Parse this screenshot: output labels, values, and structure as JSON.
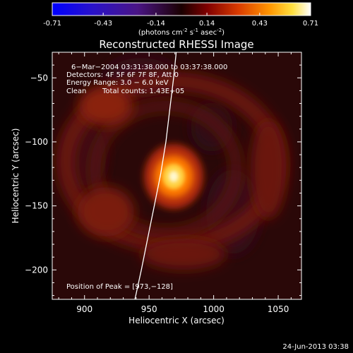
{
  "colors": {
    "background": "#000000",
    "foreground": "#ffffff",
    "colormap": [
      "#0000ff",
      "#3b10b8",
      "#551a7a",
      "#1c0000",
      "#800000",
      "#d93b00",
      "#ff8c00",
      "#ffd700",
      "#ffffff"
    ]
  },
  "colorbar": {
    "tick_labels": [
      "-0.71",
      "-0.43",
      "-0.14",
      "0.14",
      "0.43",
      "0.71"
    ],
    "tick_values": [
      -0.71,
      -0.43,
      -0.14,
      0.14,
      0.43,
      0.71
    ],
    "range": [
      -0.71,
      0.71
    ],
    "units": {
      "prefix": "(photons cm",
      "exp1": "-2",
      "mid1": " s",
      "exp2": "-1",
      "mid2": " asec",
      "exp3": "-2",
      "suffix": ")"
    }
  },
  "chart_data": {
    "type": "heatmap",
    "title": "Reconstructed RHESSI Image",
    "xlabel": "Heliocentric X (arcsec)",
    "ylabel": "Heliocentric Y (arcsec)",
    "xlim": [
      875,
      1068
    ],
    "ylim": [
      -223,
      -30
    ],
    "x_ticks": [
      900,
      950,
      1000,
      1050
    ],
    "y_ticks": [
      -200,
      -150,
      -100,
      -50
    ],
    "x_tick_labels": [
      "900",
      "950",
      "1000",
      "1050"
    ],
    "y_tick_labels": [
      "−200",
      "−150",
      "−100",
      "−50"
    ],
    "annotations": [
      "6−Mar−2004 03:31:38.000 to 03:37:38.000",
      "Detectors: 4F 5F 6F 7F 8F, Att 0",
      "Energy Range: 3.0 − 6.0 keV",
      "Clean",
      "Total counts: 1.43E+05",
      "Position of Peak = [973,−128]"
    ],
    "peak_position": [
      973,
      -128
    ],
    "peak_value": 0.71,
    "limb_curve": {
      "x": [
        939,
        944,
        949,
        954,
        959,
        963,
        966,
        969,
        971
      ],
      "y": [
        -223,
        -200,
        -175,
        -150,
        -125,
        -100,
        -75,
        -50,
        -30
      ]
    }
  },
  "footer": {
    "timestamp": "24-Jun-2013 03:38"
  }
}
